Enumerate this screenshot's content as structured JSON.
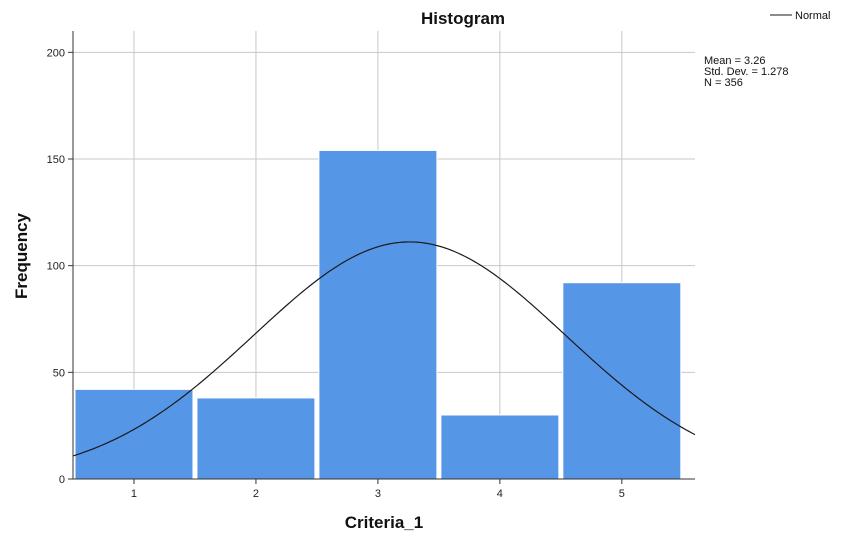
{
  "chart_data": {
    "type": "bar",
    "title": "Histogram",
    "xlabel": "Criteria_1",
    "ylabel": "Frequency",
    "categories": [
      "1",
      "2",
      "3",
      "4",
      "5"
    ],
    "values": [
      42,
      38,
      154,
      30,
      92
    ],
    "ylim": [
      0,
      210
    ],
    "yticks": [
      0,
      50,
      100,
      150,
      200
    ],
    "grid": true,
    "bar_color": "#5596e6",
    "curve_color": "#1a1a1a",
    "legend": {
      "label": "Normal",
      "placement": "top-right"
    },
    "stats": {
      "mean_label": "Mean = 3.26",
      "sd_label": "Std. Dev. = 1.278",
      "n_label": "N = 356",
      "mean": 3.26,
      "sd": 1.278,
      "n": 356
    }
  }
}
